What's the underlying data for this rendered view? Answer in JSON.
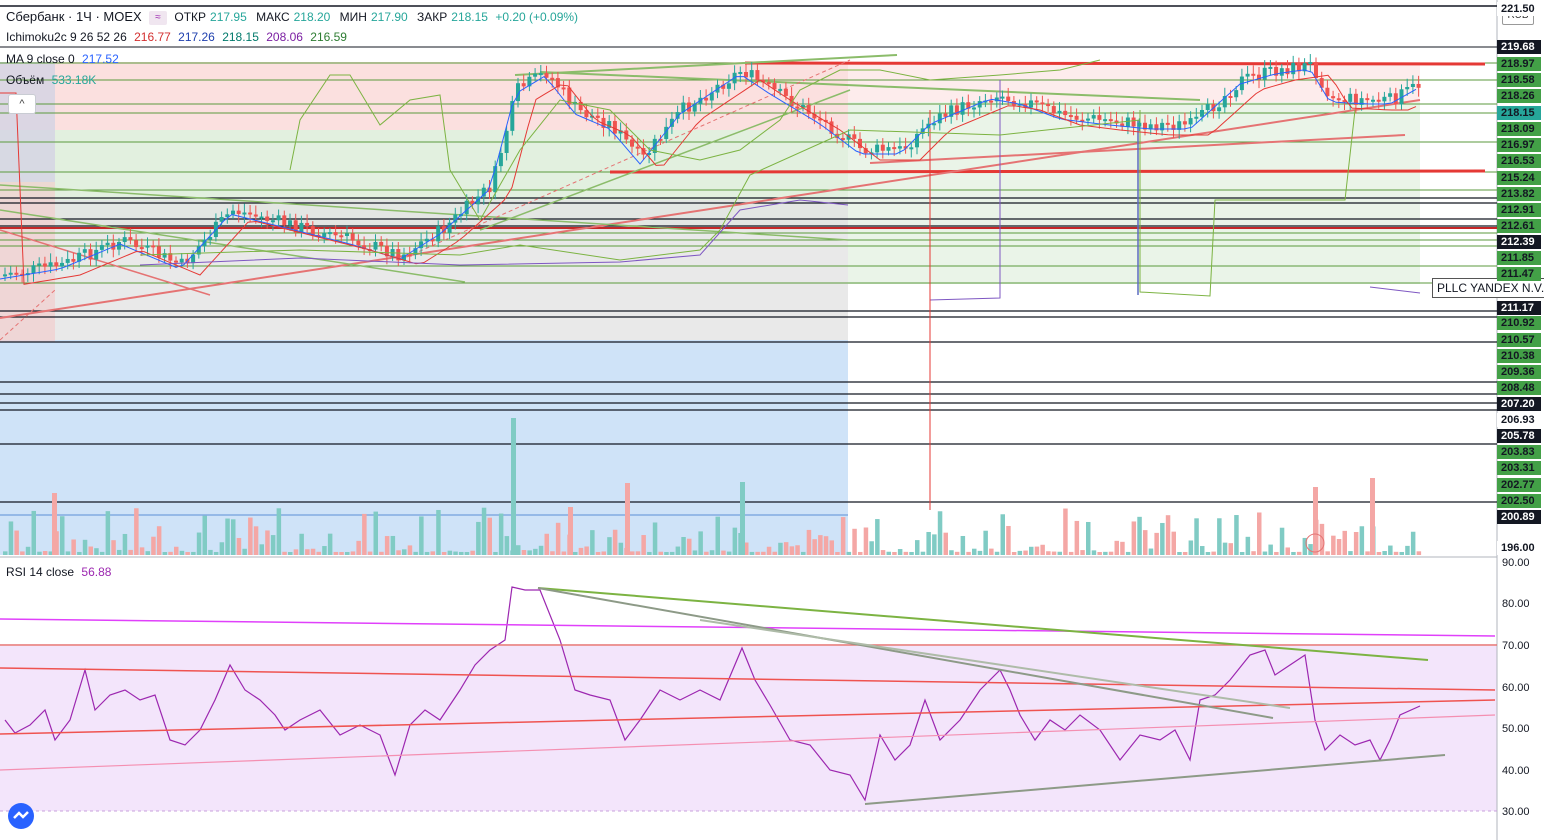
{
  "header": {
    "symbol": "Сбербанк · 1Ч · MOEX",
    "open_label": "ОТКР",
    "open": "217.95",
    "high_label": "МАКС",
    "high": "218.20",
    "low_label": "МИН",
    "low": "217.90",
    "close_label": "ЗАКР",
    "close": "218.15",
    "change": "+0.20 (+0.09%)"
  },
  "indicators": {
    "ichimoku": {
      "label": "Ichimoku2c 9 26 52 26",
      "v1": "216.77",
      "v2": "217.26",
      "v3": "218.15",
      "v4": "208.06",
      "v5": "216.59"
    },
    "ma": {
      "label": "MA 9 close 0",
      "value": "217.52"
    },
    "volume": {
      "label": "Объём",
      "value": "533.18K"
    },
    "rsi": {
      "label": "RSI 14 close",
      "value": "56.88"
    }
  },
  "currency": "RUB",
  "tooltip": "PLLC YANDEX N.V.",
  "collapse_button": "^",
  "colors": {
    "up": "#26a69a",
    "down": "#ef5350",
    "rsi": "#9c27b0"
  },
  "price_axis": [
    {
      "v": "221.50",
      "bg": "#ffffff",
      "fg": "#131722"
    },
    {
      "v": "219.68",
      "bg": "#131722",
      "fg": "#ffffff"
    },
    {
      "v": "218.97",
      "bg": "#43a047",
      "fg": "#131722"
    },
    {
      "v": "218.58",
      "bg": "#43a047",
      "fg": "#131722"
    },
    {
      "v": "218.26",
      "bg": "#43a047",
      "fg": "#131722"
    },
    {
      "v": "218.15",
      "bg": "#26a69a",
      "fg": "#131722"
    },
    {
      "v": "218.09",
      "bg": "#43a047",
      "fg": "#131722"
    },
    {
      "v": "216.97",
      "bg": "#43a047",
      "fg": "#131722"
    },
    {
      "v": "216.53",
      "bg": "#43a047",
      "fg": "#131722"
    },
    {
      "v": "215.24",
      "bg": "#43a047",
      "fg": "#131722"
    },
    {
      "v": "213.82",
      "bg": "#43a047",
      "fg": "#131722"
    },
    {
      "v": "212.91",
      "bg": "#43a047",
      "fg": "#131722"
    },
    {
      "v": "212.61",
      "bg": "#43a047",
      "fg": "#131722"
    },
    {
      "v": "212.39",
      "bg": "#131722",
      "fg": "#ffffff"
    },
    {
      "v": "211.85",
      "bg": "#43a047",
      "fg": "#131722"
    },
    {
      "v": "211.47",
      "bg": "#43a047",
      "fg": "#131722"
    },
    {
      "v": "211.17",
      "bg": "#131722",
      "fg": "#ffffff"
    },
    {
      "v": "210.92",
      "bg": "#43a047",
      "fg": "#131722"
    },
    {
      "v": "210.57",
      "bg": "#43a047",
      "fg": "#131722"
    },
    {
      "v": "210.38",
      "bg": "#43a047",
      "fg": "#131722"
    },
    {
      "v": "209.36",
      "bg": "#43a047",
      "fg": "#131722"
    },
    {
      "v": "208.48",
      "bg": "#43a047",
      "fg": "#131722"
    },
    {
      "v": "207.20",
      "bg": "#131722",
      "fg": "#ffffff"
    },
    {
      "v": "206.93",
      "bg": "#ffffff",
      "fg": "#131722"
    },
    {
      "v": "205.78",
      "bg": "#131722",
      "fg": "#ffffff"
    },
    {
      "v": "203.83",
      "bg": "#43a047",
      "fg": "#131722"
    },
    {
      "v": "203.31",
      "bg": "#43a047",
      "fg": "#131722"
    },
    {
      "v": "202.77",
      "bg": "#43a047",
      "fg": "#131722"
    },
    {
      "v": "202.50",
      "bg": "#43a047",
      "fg": "#131722"
    },
    {
      "v": "200.89",
      "bg": "#131722",
      "fg": "#ffffff"
    },
    {
      "v": "196.00",
      "bg": "#ffffff",
      "fg": "#131722"
    }
  ],
  "rsi_axis": [
    "90.00",
    "80.00",
    "70.00",
    "60.00",
    "50.00",
    "40.00",
    "30.00"
  ]
}
